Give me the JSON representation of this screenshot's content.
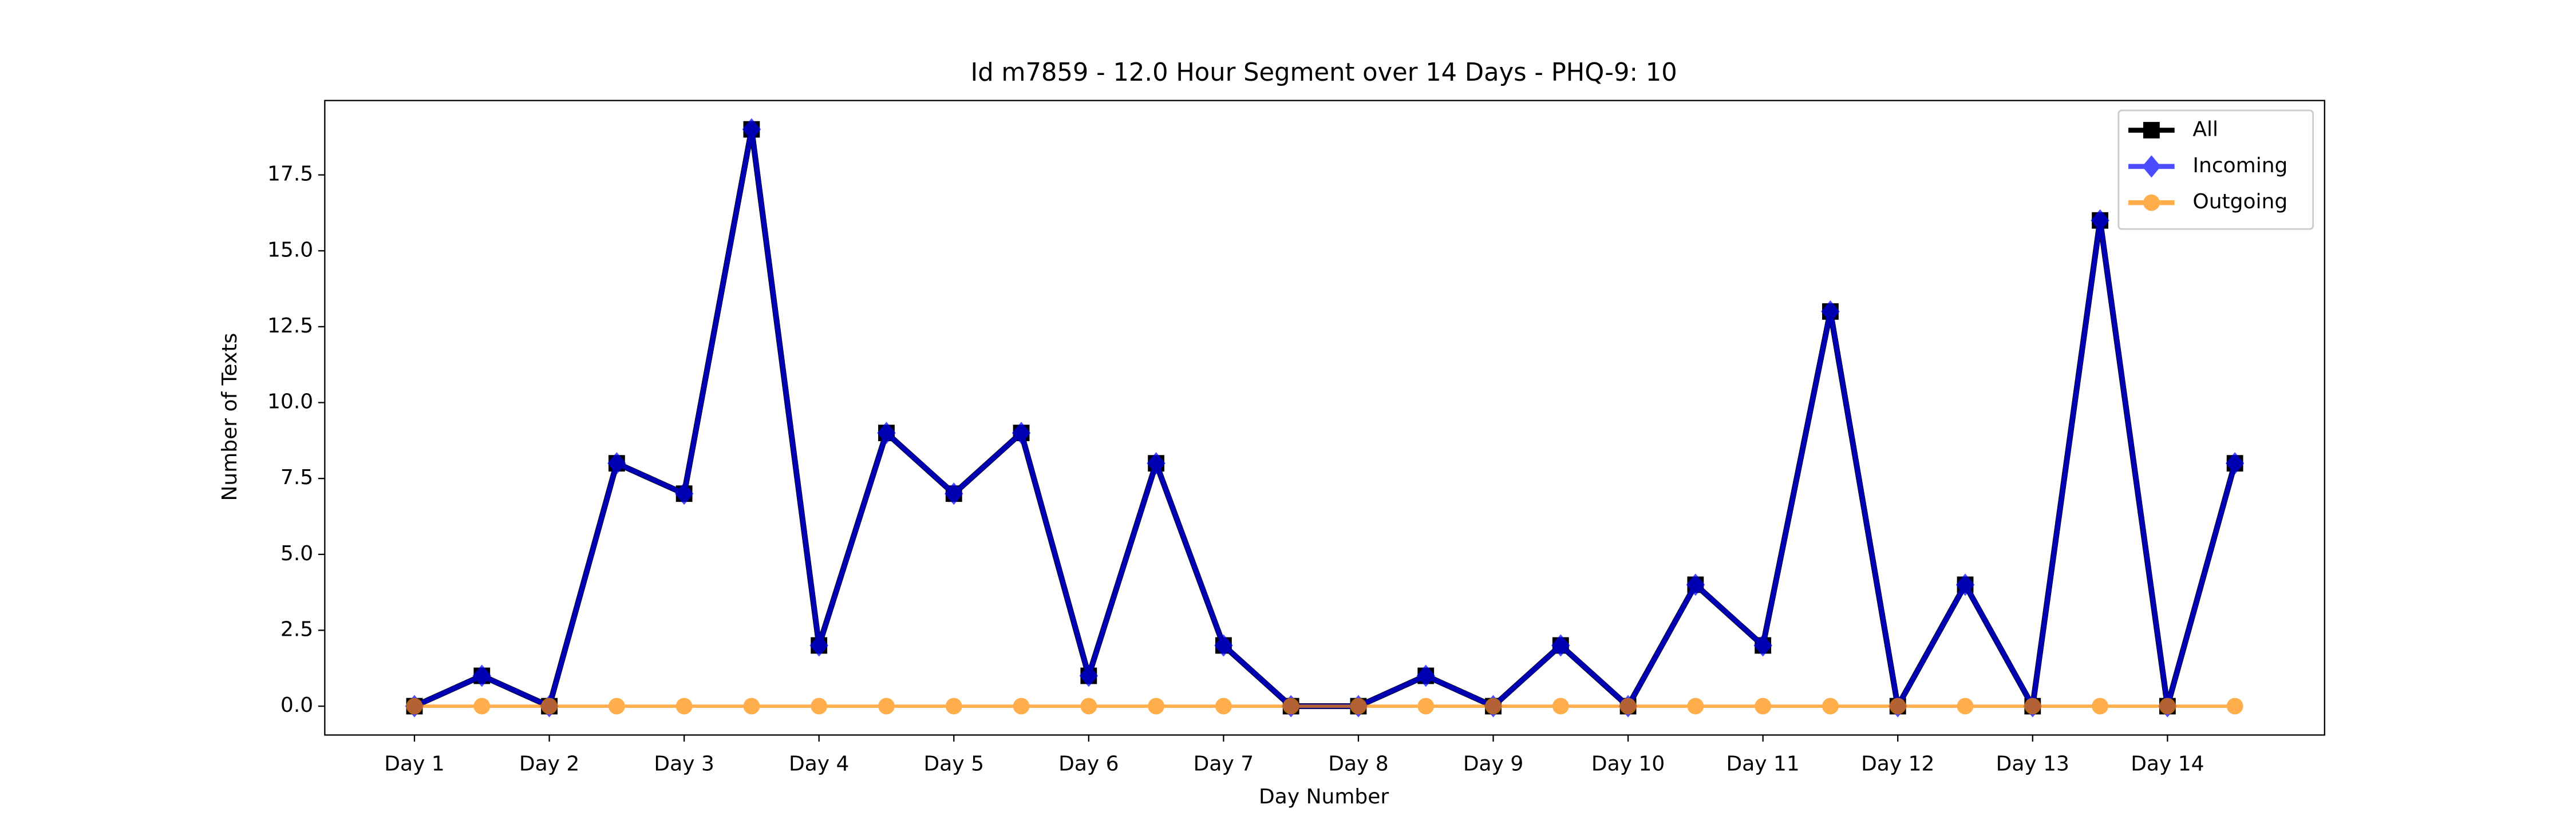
{
  "chart_data": {
    "type": "line",
    "title": "Id m7859 - 12.0 Hour Segment over 14 Days - PHQ-9: 10",
    "xlabel": "Day Number",
    "ylabel": "Number of Texts",
    "x": [
      1,
      1.5,
      2,
      2.5,
      3,
      3.5,
      4,
      4.5,
      5,
      5.5,
      6,
      6.5,
      7,
      7.5,
      8,
      8.5,
      9,
      9.5,
      10,
      10.5,
      11,
      11.5,
      12,
      12.5,
      13,
      13.5,
      14,
      14.5
    ],
    "series": [
      {
        "name": "All",
        "color": "#000000",
        "marker": "square",
        "values": [
          0,
          1,
          0,
          8,
          7,
          19,
          2,
          9,
          7,
          9,
          1,
          8,
          2,
          0,
          0,
          1,
          0,
          2,
          0,
          4,
          2,
          13,
          0,
          4,
          0,
          16,
          0,
          8
        ]
      },
      {
        "name": "Incoming",
        "color": "#0000ff",
        "marker": "diamond",
        "values": [
          0,
          1,
          0,
          8,
          7,
          19,
          2,
          9,
          7,
          9,
          1,
          8,
          2,
          0,
          0,
          1,
          0,
          2,
          0,
          4,
          2,
          13,
          0,
          4,
          0,
          16,
          0,
          8
        ]
      },
      {
        "name": "Outgoing",
        "color": "#ff8c00",
        "marker": "circle",
        "values": [
          0,
          0,
          0,
          0,
          0,
          0,
          0,
          0,
          0,
          0,
          0,
          0,
          0,
          0,
          0,
          0,
          0,
          0,
          0,
          0,
          0,
          0,
          0,
          0,
          0,
          0,
          0,
          0
        ]
      }
    ],
    "xlim": [
      0.335,
      15.165
    ],
    "xticks": [
      {
        "value": 1,
        "label": "Day 1"
      },
      {
        "value": 2,
        "label": "Day 2"
      },
      {
        "value": 3,
        "label": "Day 3"
      },
      {
        "value": 4,
        "label": "Day 4"
      },
      {
        "value": 5,
        "label": "Day 5"
      },
      {
        "value": 6,
        "label": "Day 6"
      },
      {
        "value": 7,
        "label": "Day 7"
      },
      {
        "value": 8,
        "label": "Day 8"
      },
      {
        "value": 9,
        "label": "Day 9"
      },
      {
        "value": 10,
        "label": "Day 10"
      },
      {
        "value": 11,
        "label": "Day 11"
      },
      {
        "value": 12,
        "label": "Day 12"
      },
      {
        "value": 13,
        "label": "Day 13"
      },
      {
        "value": 14,
        "label": "Day 14"
      }
    ],
    "ylim": [
      -0.95,
      19.95
    ],
    "yticks": [
      {
        "value": 0,
        "label": "0.0"
      },
      {
        "value": 2.5,
        "label": "2.5"
      },
      {
        "value": 5,
        "label": "5.0"
      },
      {
        "value": 7.5,
        "label": "7.5"
      },
      {
        "value": 10,
        "label": "10.0"
      },
      {
        "value": 12.5,
        "label": "12.5"
      },
      {
        "value": 15,
        "label": "15.0"
      },
      {
        "value": 17.5,
        "label": "17.5"
      }
    ],
    "legend": "upper right",
    "grid": false
  }
}
